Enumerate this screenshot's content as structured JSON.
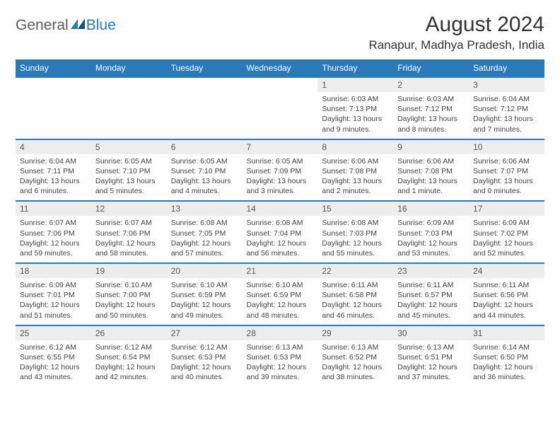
{
  "brand": {
    "part1": "General",
    "part2": "Blue"
  },
  "title": "August 2024",
  "location": "Ranapur, Madhya Pradesh, India",
  "colors": {
    "header_bg": "#2a7aba",
    "header_text": "#ffffff",
    "daynum_bg": "#ededed",
    "text": "#444444",
    "accent": "#2a7aba"
  },
  "day_headers": [
    "Sunday",
    "Monday",
    "Tuesday",
    "Wednesday",
    "Thursday",
    "Friday",
    "Saturday"
  ],
  "weeks": [
    [
      null,
      null,
      null,
      null,
      {
        "n": "1",
        "sr": "6:03 AM",
        "ss": "7:13 PM",
        "dl": "13 hours and 9 minutes."
      },
      {
        "n": "2",
        "sr": "6:03 AM",
        "ss": "7:12 PM",
        "dl": "13 hours and 8 minutes."
      },
      {
        "n": "3",
        "sr": "6:04 AM",
        "ss": "7:12 PM",
        "dl": "13 hours and 7 minutes."
      }
    ],
    [
      {
        "n": "4",
        "sr": "6:04 AM",
        "ss": "7:11 PM",
        "dl": "13 hours and 6 minutes."
      },
      {
        "n": "5",
        "sr": "6:05 AM",
        "ss": "7:10 PM",
        "dl": "13 hours and 5 minutes."
      },
      {
        "n": "6",
        "sr": "6:05 AM",
        "ss": "7:10 PM",
        "dl": "13 hours and 4 minutes."
      },
      {
        "n": "7",
        "sr": "6:05 AM",
        "ss": "7:09 PM",
        "dl": "13 hours and 3 minutes."
      },
      {
        "n": "8",
        "sr": "6:06 AM",
        "ss": "7:08 PM",
        "dl": "13 hours and 2 minutes."
      },
      {
        "n": "9",
        "sr": "6:06 AM",
        "ss": "7:08 PM",
        "dl": "13 hours and 1 minute."
      },
      {
        "n": "10",
        "sr": "6:06 AM",
        "ss": "7:07 PM",
        "dl": "13 hours and 0 minutes."
      }
    ],
    [
      {
        "n": "11",
        "sr": "6:07 AM",
        "ss": "7:06 PM",
        "dl": "12 hours and 59 minutes."
      },
      {
        "n": "12",
        "sr": "6:07 AM",
        "ss": "7:06 PM",
        "dl": "12 hours and 58 minutes."
      },
      {
        "n": "13",
        "sr": "6:08 AM",
        "ss": "7:05 PM",
        "dl": "12 hours and 57 minutes."
      },
      {
        "n": "14",
        "sr": "6:08 AM",
        "ss": "7:04 PM",
        "dl": "12 hours and 56 minutes."
      },
      {
        "n": "15",
        "sr": "6:08 AM",
        "ss": "7:03 PM",
        "dl": "12 hours and 55 minutes."
      },
      {
        "n": "16",
        "sr": "6:09 AM",
        "ss": "7:03 PM",
        "dl": "12 hours and 53 minutes."
      },
      {
        "n": "17",
        "sr": "6:09 AM",
        "ss": "7:02 PM",
        "dl": "12 hours and 52 minutes."
      }
    ],
    [
      {
        "n": "18",
        "sr": "6:09 AM",
        "ss": "7:01 PM",
        "dl": "12 hours and 51 minutes."
      },
      {
        "n": "19",
        "sr": "6:10 AM",
        "ss": "7:00 PM",
        "dl": "12 hours and 50 minutes."
      },
      {
        "n": "20",
        "sr": "6:10 AM",
        "ss": "6:59 PM",
        "dl": "12 hours and 49 minutes."
      },
      {
        "n": "21",
        "sr": "6:10 AM",
        "ss": "6:59 PM",
        "dl": "12 hours and 48 minutes."
      },
      {
        "n": "22",
        "sr": "6:11 AM",
        "ss": "6:58 PM",
        "dl": "12 hours and 46 minutes."
      },
      {
        "n": "23",
        "sr": "6:11 AM",
        "ss": "6:57 PM",
        "dl": "12 hours and 45 minutes."
      },
      {
        "n": "24",
        "sr": "6:11 AM",
        "ss": "6:56 PM",
        "dl": "12 hours and 44 minutes."
      }
    ],
    [
      {
        "n": "25",
        "sr": "6:12 AM",
        "ss": "6:55 PM",
        "dl": "12 hours and 43 minutes."
      },
      {
        "n": "26",
        "sr": "6:12 AM",
        "ss": "6:54 PM",
        "dl": "12 hours and 42 minutes."
      },
      {
        "n": "27",
        "sr": "6:12 AM",
        "ss": "6:53 PM",
        "dl": "12 hours and 40 minutes."
      },
      {
        "n": "28",
        "sr": "6:13 AM",
        "ss": "6:53 PM",
        "dl": "12 hours and 39 minutes."
      },
      {
        "n": "29",
        "sr": "6:13 AM",
        "ss": "6:52 PM",
        "dl": "12 hours and 38 minutes."
      },
      {
        "n": "30",
        "sr": "6:13 AM",
        "ss": "6:51 PM",
        "dl": "12 hours and 37 minutes."
      },
      {
        "n": "31",
        "sr": "6:14 AM",
        "ss": "6:50 PM",
        "dl": "12 hours and 36 minutes."
      }
    ]
  ],
  "labels": {
    "sunrise": "Sunrise:",
    "sunset": "Sunset:",
    "daylight": "Daylight:"
  }
}
